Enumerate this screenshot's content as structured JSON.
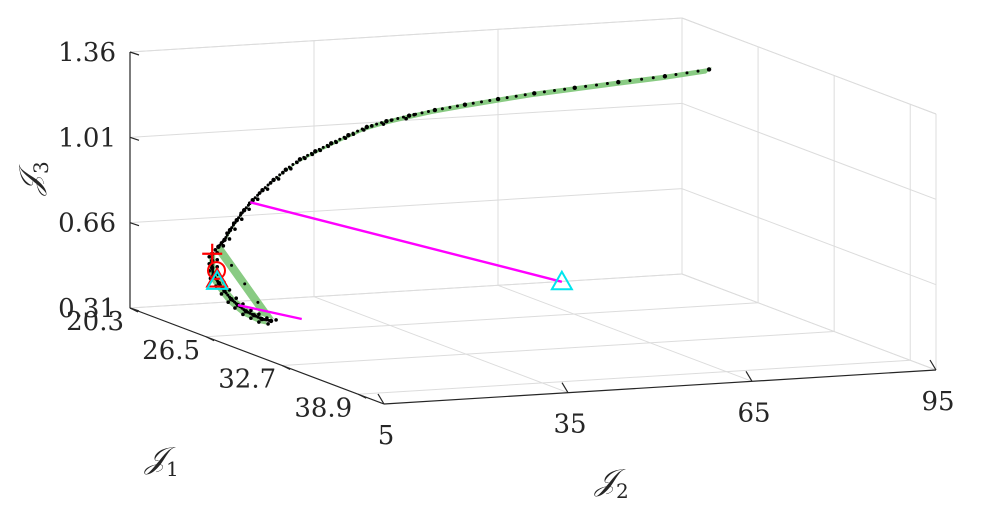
{
  "chart_data": {
    "type": "scatter",
    "projection": "3d",
    "title": "",
    "axes": {
      "x": {
        "label": "𝒥",
        "subscript": "1",
        "ticks": [
          "20.3",
          "26.5",
          "32.7",
          "38.9"
        ],
        "range": [
          20.3,
          41.0
        ]
      },
      "y": {
        "label": "𝒥",
        "subscript": "2",
        "ticks": [
          "5",
          "35",
          "65",
          "95"
        ],
        "range": [
          5,
          95
        ]
      },
      "z": {
        "label": "𝒥",
        "subscript": "3",
        "ticks": [
          "0.31",
          "0.66",
          "1.01",
          "1.36"
        ],
        "range": [
          0.31,
          1.36
        ]
      }
    },
    "grid": true,
    "colors": {
      "front_points": "#000000",
      "front_fill": "#7cc576",
      "lines": "#ff00ff",
      "triangle_cyan": "#00e5ee",
      "markers_red": "#ff0000"
    },
    "series": [
      {
        "kind": "pareto-front-points",
        "points": [
          [
            27.0,
            5.0,
            0.66
          ],
          [
            26.5,
            6.0,
            0.62
          ],
          [
            26.0,
            7.0,
            0.58
          ],
          [
            25.6,
            8.0,
            0.54
          ],
          [
            25.3,
            9.5,
            0.5
          ],
          [
            25.0,
            11.0,
            0.46
          ],
          [
            24.8,
            12.5,
            0.42
          ],
          [
            24.6,
            14.0,
            0.39
          ],
          [
            24.5,
            15.5,
            0.36
          ],
          [
            24.4,
            17.0,
            0.34
          ],
          [
            24.3,
            18.5,
            0.32
          ],
          [
            24.3,
            20.0,
            0.31
          ],
          [
            27.6,
            4.8,
            0.7
          ],
          [
            28.2,
            4.6,
            0.74
          ],
          [
            28.7,
            4.5,
            0.79
          ],
          [
            29.2,
            4.6,
            0.84
          ],
          [
            29.7,
            4.8,
            0.89
          ],
          [
            30.2,
            5.2,
            0.94
          ],
          [
            30.7,
            5.8,
            0.99
          ],
          [
            31.2,
            6.6,
            1.04
          ],
          [
            31.7,
            7.6,
            1.09
          ],
          [
            32.2,
            8.9,
            1.14
          ],
          [
            32.7,
            10.4,
            1.18
          ],
          [
            33.2,
            12.0,
            1.22
          ],
          [
            33.7,
            13.8,
            1.26
          ],
          [
            34.2,
            15.8,
            1.3
          ],
          [
            34.7,
            18.0,
            1.33
          ],
          [
            35.3,
            20.5,
            1.36
          ],
          [
            35.9,
            23.5,
            1.39
          ],
          [
            36.6,
            27.0,
            1.42
          ],
          [
            37.3,
            31.0,
            1.45
          ],
          [
            38.0,
            35.5,
            1.48
          ],
          [
            38.8,
            40.5,
            1.51
          ],
          [
            39.6,
            46.0,
            1.54
          ],
          [
            40.4,
            52.0,
            1.57
          ],
          [
            41.0,
            58.0,
            1.6
          ]
        ]
      }
    ],
    "markers": [
      {
        "shape": "triangle",
        "color": "#00e5ee",
        "x": 38.0,
        "y": 40.0,
        "z": 0.7
      },
      {
        "shape": "plus",
        "color": "#ff0000",
        "x": 27.0,
        "y": 5.0,
        "z": 0.66
      },
      {
        "shape": "circle",
        "color": "#ff0000",
        "x": 26.1,
        "y": 7.5,
        "z": 0.57
      },
      {
        "shape": "triangle",
        "color": "#ff0000",
        "x": 25.4,
        "y": 9.0,
        "z": 0.52
      },
      {
        "shape": "triangle",
        "color": "#00e5ee",
        "x": 25.4,
        "y": 9.0,
        "z": 0.51
      }
    ],
    "lines": [
      {
        "color": "#ff00ff",
        "from": [
          30.1,
          5.0,
          0.93
        ],
        "to": [
          38.0,
          40.0,
          0.7
        ]
      },
      {
        "color": "#ff00ff",
        "from": [
          24.6,
          14.0,
          0.39
        ],
        "to": [
          24.3,
          25.0,
          0.31
        ]
      }
    ]
  }
}
